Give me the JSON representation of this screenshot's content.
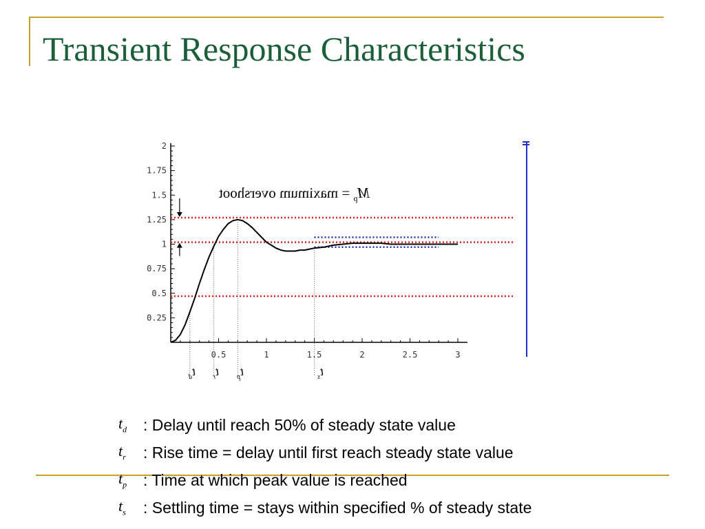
{
  "slide": {
    "title": "Transient Response Characteristics",
    "annotation": "M_p = maximum overshoot",
    "time_labels": [
      "t_d",
      "t_r",
      "t_p",
      "t_s"
    ]
  },
  "legend": [
    {
      "var": "t",
      "sub": "d",
      "text": ": Delay until reach 50% of steady state value"
    },
    {
      "var": "t",
      "sub": "r",
      "text": ": Rise time = delay until first reach steady state value"
    },
    {
      "var": "t",
      "sub": "p",
      "text": ": Time at which peak value is reached"
    },
    {
      "var": "t",
      "sub": "s",
      "text": ": Settling time = stays within specified % of steady state"
    }
  ],
  "chart_data": {
    "type": "line",
    "xlim": [
      0,
      3
    ],
    "ylim": [
      0,
      2
    ],
    "x_ticks": [
      "0.5",
      "1",
      "1.5",
      "2",
      "2.5",
      "3"
    ],
    "y_ticks": [
      "0.25",
      "0.5",
      "0.75",
      "1",
      "1.25",
      "1.5",
      "1.75",
      "2"
    ],
    "x_tick_values": [
      0.5,
      1,
      1.5,
      2,
      2.5,
      3
    ],
    "y_tick_values": [
      0.25,
      0.5,
      0.75,
      1,
      1.25,
      1.5,
      1.75,
      2
    ],
    "series": [
      {
        "x": [
          0,
          0.05,
          0.1,
          0.15,
          0.2,
          0.25,
          0.3,
          0.35,
          0.4,
          0.45,
          0.5,
          0.55,
          0.6,
          0.65,
          0.7,
          0.75,
          0.8,
          0.85,
          0.9,
          0.95,
          1.0,
          1.05,
          1.1,
          1.15,
          1.2,
          1.25,
          1.3,
          1.35,
          1.4,
          1.45,
          1.5,
          1.6,
          1.7,
          1.8,
          1.9,
          2.0,
          2.1,
          2.2,
          2.3,
          2.4,
          2.5,
          2.6,
          2.7,
          2.8,
          2.9,
          3.0
        ],
        "y": [
          0,
          0.02,
          0.08,
          0.18,
          0.31,
          0.45,
          0.6,
          0.74,
          0.87,
          0.98,
          1.08,
          1.15,
          1.21,
          1.24,
          1.25,
          1.24,
          1.21,
          1.17,
          1.12,
          1.07,
          1.02,
          0.99,
          0.96,
          0.94,
          0.93,
          0.93,
          0.93,
          0.94,
          0.94,
          0.95,
          0.96,
          0.97,
          0.99,
          1.0,
          1.01,
          1.01,
          1.01,
          1.01,
          1.0,
          1.0,
          1.0,
          1.0,
          1.0,
          1.0,
          1.0,
          1.0
        ]
      }
    ],
    "reference_lines": [
      1.27,
      1.02,
      0.47
    ],
    "settling_band": {
      "x_start": 1.5,
      "x_end": 2.8,
      "y_low": 0.97,
      "y_high": 1.07
    },
    "time_markers": [
      0.2,
      0.45,
      0.7,
      1.5
    ],
    "overshoot_arrows": {
      "x": 0.15,
      "top": 1.27,
      "bottom": 1.02
    }
  }
}
